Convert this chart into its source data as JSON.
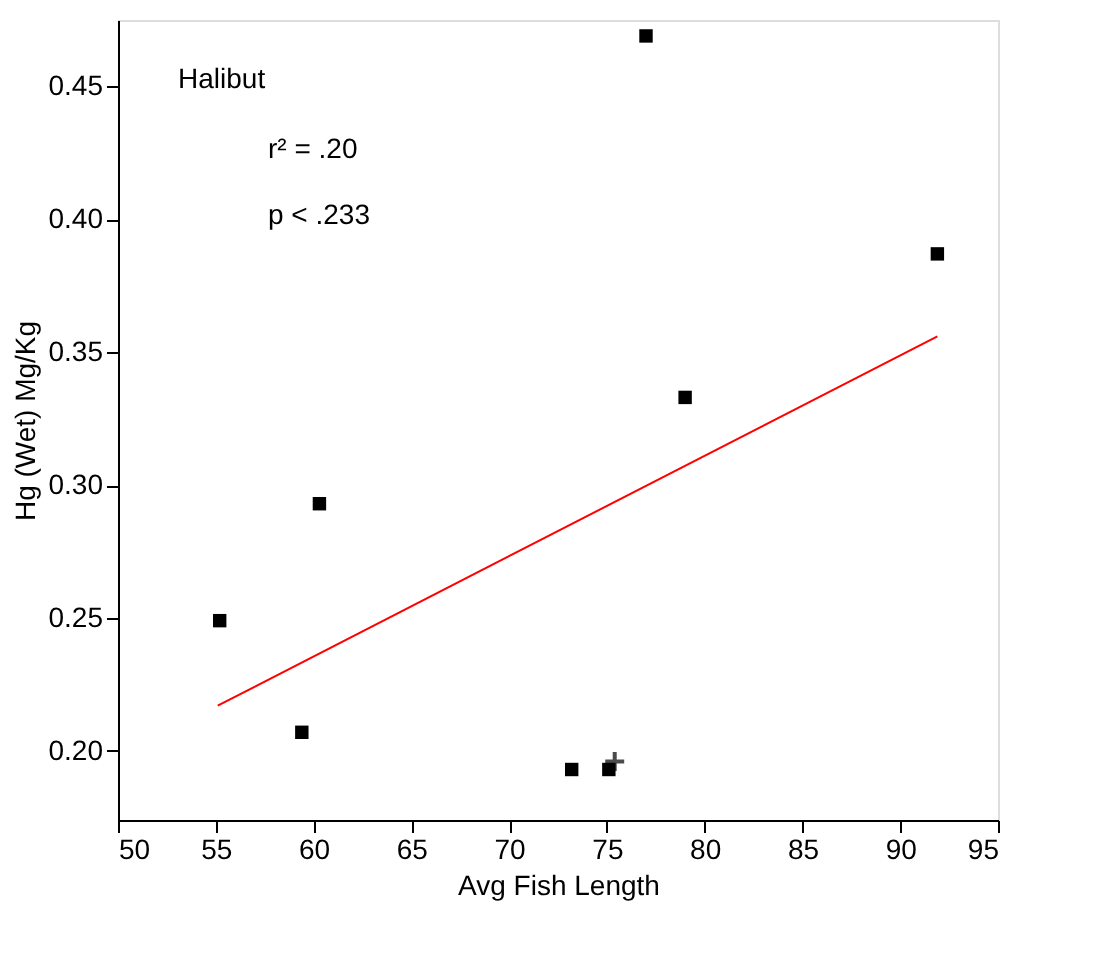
{
  "chart_data": {
    "type": "scatter",
    "xlabel": "Avg Fish Length",
    "ylabel": "Hg (Wet) Mg/Kg",
    "annotations": [
      "Halibut",
      "r² = .20",
      "p < .233"
    ],
    "xlim": [
      50,
      95
    ],
    "xticks": [
      50,
      55,
      60,
      65,
      70,
      75,
      80,
      85,
      90,
      95
    ],
    "ylim": [
      0.174,
      0.475
    ],
    "yticks": [
      {
        "value": 0.2,
        "label": "0.20"
      },
      0.25,
      {
        "value": 0.3,
        "label": "0.30"
      },
      0.35,
      {
        "value": 0.4,
        "label": "0.40"
      },
      0.45
    ],
    "grid": false,
    "series": [
      {
        "marker": "square",
        "color": "#000000",
        "x": [
          55.2,
          59.4,
          60.3,
          73.2,
          75.1,
          77.0,
          79.0,
          91.9
        ],
        "values": [
          0.249,
          0.207,
          0.293,
          0.193,
          0.193,
          0.469,
          0.333,
          0.387
        ]
      },
      {
        "type": "scatter",
        "marker": "cross",
        "color": "#000000",
        "x": [
          75.4
        ],
        "values": [
          0.196
        ]
      },
      {
        "type": "line",
        "color": "#ff0000",
        "x": [
          55.1,
          91.9
        ],
        "values": [
          0.217,
          0.356
        ]
      }
    ]
  }
}
